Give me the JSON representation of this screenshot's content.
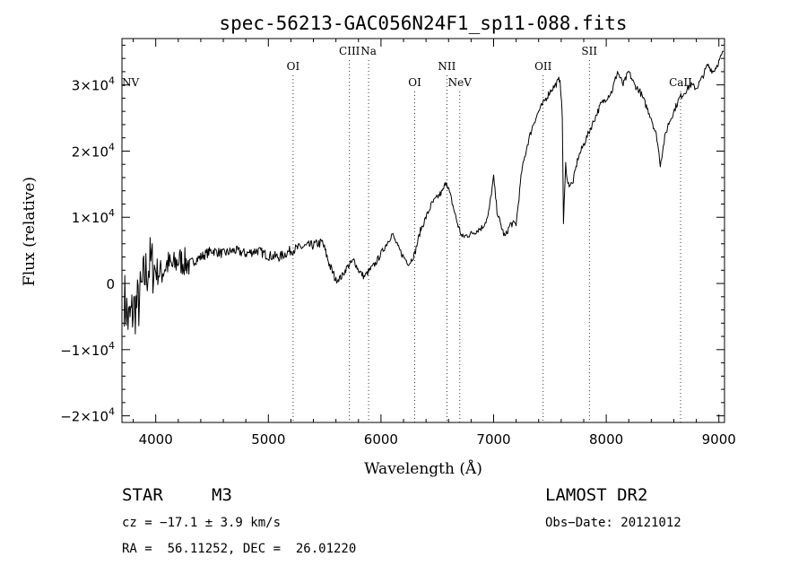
{
  "chart_data": {
    "type": "line",
    "title": "spec-56213-GAC056N24F1_sp11-088.fits",
    "xlabel": "Wavelength (Å)",
    "ylabel": "Flux (relative)",
    "xlim": [
      3700,
      9050
    ],
    "ylim": [
      -21000,
      37000
    ],
    "x_ticks": [
      4000,
      5000,
      6000,
      7000,
      8000,
      9000
    ],
    "y_ticks": [
      {
        "value": -20000,
        "mant": "−2×10",
        "exp": "4"
      },
      {
        "value": -10000,
        "mant": "−1×10",
        "exp": "4"
      },
      {
        "value": 0,
        "mant": "0",
        "exp": ""
      },
      {
        "value": 10000,
        "mant": "1×10",
        "exp": "4"
      },
      {
        "value": 20000,
        "mant": "2×10",
        "exp": "4"
      },
      {
        "value": 30000,
        "mant": "3×10",
        "exp": "4"
      }
    ],
    "series": [
      {
        "name": "flux",
        "x": [
          3720,
          3760,
          3800,
          3850,
          3900,
          3950,
          4000,
          4050,
          4100,
          4150,
          4200,
          4300,
          4400,
          4500,
          4600,
          4700,
          4800,
          4900,
          5000,
          5100,
          5200,
          5300,
          5400,
          5480,
          5550,
          5600,
          5650,
          5700,
          5760,
          5800,
          5850,
          5900,
          5950,
          6000,
          6050,
          6100,
          6150,
          6200,
          6250,
          6300,
          6350,
          6400,
          6450,
          6500,
          6550,
          6580,
          6620,
          6680,
          6720,
          6800,
          6850,
          6900,
          6950,
          7000,
          7030,
          7060,
          7100,
          7150,
          7200,
          7250,
          7300,
          7350,
          7400,
          7450,
          7500,
          7550,
          7590,
          7610,
          7620,
          7640,
          7660,
          7700,
          7750,
          7800,
          7850,
          7900,
          7950,
          8000,
          8050,
          8100,
          8150,
          8200,
          8250,
          8300,
          8350,
          8400,
          8450,
          8480,
          8500,
          8520,
          8550,
          8600,
          8650,
          8700,
          8750,
          8800,
          8850,
          8900,
          8950,
          9000,
          9040
        ],
        "y": [
          -2000,
          -6000,
          -4000,
          -3000,
          1000,
          3000,
          2000,
          1500,
          3000,
          2500,
          3500,
          3000,
          4000,
          5000,
          4500,
          5000,
          4500,
          5000,
          4200,
          4000,
          5000,
          5500,
          5800,
          6200,
          2500,
          500,
          1000,
          2500,
          3500,
          2000,
          1000,
          2000,
          3000,
          4500,
          6000,
          7500,
          5500,
          4000,
          3000,
          4500,
          8000,
          10000,
          12000,
          13000,
          14000,
          15500,
          13000,
          9000,
          7000,
          7500,
          8000,
          8500,
          10000,
          16000,
          11000,
          9000,
          7000,
          9000,
          9000,
          17000,
          21000,
          24000,
          26000,
          27500,
          29000,
          30000,
          31000,
          25000,
          9000,
          18000,
          15000,
          15000,
          19000,
          21000,
          23000,
          25000,
          27000,
          28000,
          29000,
          32000,
          30000,
          32000,
          30000,
          29000,
          27000,
          25000,
          22000,
          18000,
          20000,
          22000,
          24000,
          26000,
          28000,
          29000,
          30000,
          29500,
          31000,
          33000,
          32000,
          33500,
          35000
        ]
      }
    ],
    "lines": [
      {
        "label": "NV",
        "x": 3700,
        "label_row": 2
      },
      {
        "label": "OI",
        "x": 5220,
        "label_row": 1
      },
      {
        "label": "CIII",
        "x": 5720,
        "label_row": 0
      },
      {
        "label": "Na",
        "x": 5890,
        "label_row": 0
      },
      {
        "label": "OI",
        "x": 6300,
        "label_row": 2
      },
      {
        "label": "NII",
        "x": 6585,
        "label_row": 1
      },
      {
        "label": "NeV",
        "x": 6700,
        "label_row": 2
      },
      {
        "label": "OII",
        "x": 7440,
        "label_row": 1
      },
      {
        "label": "SII",
        "x": 7850,
        "label_row": 0
      },
      {
        "label": "CaII",
        "x": 8660,
        "label_row": 2
      }
    ]
  },
  "info": {
    "object_type": "STAR",
    "subclass": "M3",
    "survey": "LAMOST DR2",
    "velocity": "cz = −17.1 ± 3.9 km/s",
    "obs_date": "Obs−Date: 20121012",
    "coordinates": "RA =  56.11252, DEC =  26.01220"
  }
}
